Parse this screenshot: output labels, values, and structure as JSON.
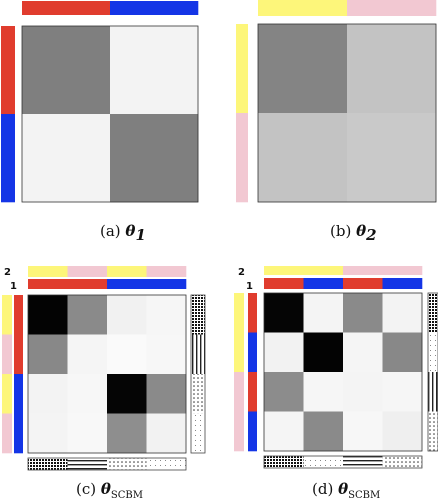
{
  "colors": {
    "red": "#e03c2e",
    "blue": "#1435e6",
    "yellow": "#fdf67a",
    "pink": "#f2c8d2"
  },
  "panels": [
    {
      "id": "a",
      "caption": {
        "prefix": "(a) ",
        "symbol": "θ",
        "sub": "1",
        "sub_style": "bold"
      },
      "top_bars": [
        [
          "red",
          "blue"
        ]
      ],
      "left_bars": [
        [
          "red",
          "blue"
        ]
      ],
      "level_labels": [],
      "grid": [
        [
          "#7f7f7f",
          "#f3f3f3"
        ],
        [
          "#f3f3f3",
          "#7f7f7f"
        ]
      ],
      "row_textures": [],
      "col_textures": []
    },
    {
      "id": "b",
      "caption": {
        "prefix": "(b) ",
        "symbol": "θ",
        "sub": "2",
        "sub_style": "bold"
      },
      "top_bars": [
        [
          "yellow",
          "pink"
        ]
      ],
      "left_bars": [
        [
          "yellow",
          "pink"
        ]
      ],
      "level_labels": [],
      "grid": [
        [
          "#848484",
          "#c3c3c3"
        ],
        [
          "#c3c3c3",
          "#c9c9c9"
        ]
      ],
      "row_textures": [],
      "col_textures": []
    },
    {
      "id": "c",
      "caption": {
        "prefix": "(c) ",
        "symbol": "θ",
        "sub": "SCBM",
        "sub_style": "smallcaps"
      },
      "top_bars": [
        [
          "yellow",
          "pink",
          "yellow",
          "pink"
        ],
        [
          "red",
          "red",
          "blue",
          "blue"
        ]
      ],
      "left_bars": [
        [
          "yellow",
          "pink",
          "yellow",
          "pink"
        ],
        [
          "red",
          "red",
          "blue",
          "blue"
        ]
      ],
      "level_labels": [
        "2",
        "1"
      ],
      "grid": [
        [
          "#030303",
          "#8a8a8a",
          "#f1f1f1",
          "#f6f6f6"
        ],
        [
          "#888888",
          "#f5f5f5",
          "#fafafa",
          "#f7f7f7"
        ],
        [
          "#f3f3f3",
          "#f7f7f7",
          "#050505",
          "#8a8a8a"
        ],
        [
          "#f4f4f4",
          "#f8f8f8",
          "#8e8e8e",
          "#f2f2f2"
        ]
      ],
      "row_textures": [
        "dense",
        "vlines",
        "dots",
        "sparse"
      ],
      "col_textures": [
        "dense",
        "hlines",
        "dots",
        "sparse"
      ]
    },
    {
      "id": "d",
      "caption": {
        "prefix": "(d) ",
        "symbol": "θ",
        "sub": "SCBM",
        "sub_style": "smallcaps"
      },
      "top_bars": [
        [
          "yellow",
          "yellow",
          "pink",
          "pink"
        ],
        [
          "red",
          "blue",
          "red",
          "blue"
        ]
      ],
      "left_bars": [
        [
          "yellow",
          "yellow",
          "pink",
          "pink"
        ],
        [
          "red",
          "blue",
          "red",
          "blue"
        ]
      ],
      "level_labels": [
        "2",
        "1"
      ],
      "grid": [
        [
          "#050505",
          "#f4f4f4",
          "#8a8a8a",
          "#f3f3f3"
        ],
        [
          "#f2f2f2",
          "#030303",
          "#f5f5f5",
          "#888888"
        ],
        [
          "#8c8c8c",
          "#f6f6f6",
          "#f4f4f4",
          "#f6f6f6"
        ],
        [
          "#f5f5f5",
          "#8a8a8a",
          "#f7f7f7",
          "#efefef"
        ]
      ],
      "row_textures": [
        "dense",
        "sparse",
        "vlines",
        "dots"
      ],
      "col_textures": [
        "dense",
        "sparse",
        "hlines",
        "dots"
      ]
    }
  ]
}
